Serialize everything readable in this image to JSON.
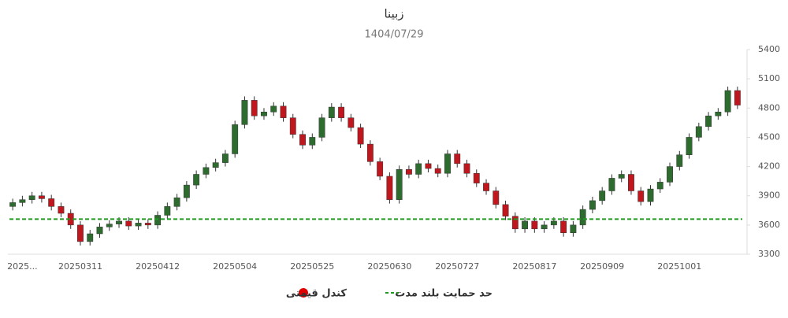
{
  "chart_data": {
    "type": "candlestick",
    "title": "زبینا",
    "subtitle": "1404/07/29",
    "categories": [
      null,
      "2025...",
      null,
      null,
      null,
      null,
      null,
      "20250311",
      null,
      null,
      null,
      null,
      null,
      null,
      null,
      "20250412",
      null,
      null,
      null,
      null,
      null,
      null,
      null,
      "20250504",
      null,
      null,
      null,
      null,
      null,
      null,
      null,
      "20250525",
      null,
      null,
      null,
      null,
      null,
      null,
      null,
      "20250630",
      null,
      null,
      null,
      null,
      null,
      null,
      "20250727",
      null,
      null,
      null,
      null,
      null,
      null,
      null,
      "20250817",
      null,
      null,
      null,
      null,
      null,
      null,
      "20250909",
      null,
      null,
      null,
      null,
      null,
      null,
      null,
      "20251001",
      null,
      null,
      null,
      null,
      null,
      null
    ],
    "series": [
      {
        "name": "کندل قیمتی",
        "color": "#e00000",
        "up_color": "#2e6b2e",
        "down_color": "#c0161d",
        "open": [
          3790,
          3830,
          3860,
          3900,
          3870,
          3790,
          3720,
          3600,
          3430,
          3510,
          3580,
          3610,
          3640,
          3590,
          3620,
          3600,
          3700,
          3790,
          3880,
          4010,
          4120,
          4190,
          4240,
          4330,
          4630,
          4880,
          4720,
          4760,
          4820,
          4700,
          4530,
          4420,
          4500,
          4700,
          4810,
          4700,
          4600,
          4430,
          4250,
          4100,
          3860,
          4170,
          4120,
          4230,
          4180,
          4130,
          4330,
          4230,
          4130,
          4030,
          3950,
          3810,
          3690,
          3560,
          3640,
          3560,
          3600,
          3640,
          3520,
          3600,
          3760,
          3850,
          3950,
          4080,
          4120,
          3950,
          3840,
          3970,
          4040,
          4200,
          4320,
          4500,
          4610,
          4720,
          4760,
          4980
        ],
        "high": [
          3870,
          3900,
          3940,
          3940,
          3910,
          3830,
          3760,
          3640,
          3550,
          3620,
          3650,
          3680,
          3680,
          3660,
          3660,
          3740,
          3830,
          3920,
          4050,
          4160,
          4230,
          4280,
          4370,
          4670,
          4920,
          4920,
          4800,
          4860,
          4860,
          4740,
          4570,
          4540,
          4740,
          4850,
          4850,
          4740,
          4640,
          4470,
          4290,
          4140,
          4210,
          4210,
          4270,
          4270,
          4220,
          4370,
          4370,
          4270,
          4170,
          4070,
          3990,
          3850,
          3730,
          3680,
          3680,
          3640,
          3680,
          3680,
          3640,
          3800,
          3890,
          3990,
          4120,
          4160,
          4160,
          3990,
          4010,
          4080,
          4240,
          4360,
          4540,
          4650,
          4760,
          4800,
          5020,
          5020
        ],
        "low": [
          3750,
          3790,
          3820,
          3830,
          3750,
          3680,
          3560,
          3390,
          3390,
          3470,
          3540,
          3570,
          3550,
          3550,
          3560,
          3560,
          3660,
          3750,
          3840,
          3970,
          4080,
          4150,
          4200,
          4290,
          4590,
          4680,
          4680,
          4720,
          4660,
          4490,
          4380,
          4380,
          4460,
          4660,
          4660,
          4560,
          4390,
          4210,
          4060,
          3820,
          3820,
          4080,
          4080,
          4140,
          4090,
          4090,
          4190,
          4090,
          3990,
          3910,
          3770,
          3650,
          3520,
          3520,
          3520,
          3520,
          3560,
          3480,
          3480,
          3560,
          3720,
          3810,
          3910,
          4040,
          3910,
          3800,
          3800,
          3930,
          4000,
          4160,
          4280,
          4460,
          4570,
          4680,
          4720,
          4790
        ],
        "close": [
          3830,
          3860,
          3900,
          3870,
          3790,
          3720,
          3600,
          3430,
          3510,
          3580,
          3610,
          3640,
          3590,
          3620,
          3600,
          3700,
          3790,
          3880,
          4010,
          4120,
          4190,
          4240,
          4330,
          4630,
          4880,
          4720,
          4760,
          4820,
          4700,
          4530,
          4420,
          4500,
          4700,
          4810,
          4700,
          4600,
          4430,
          4250,
          4100,
          3860,
          4170,
          4120,
          4230,
          4180,
          4130,
          4330,
          4230,
          4130,
          4030,
          3950,
          3810,
          3690,
          3560,
          3640,
          3560,
          3600,
          3640,
          3520,
          3600,
          3760,
          3850,
          3950,
          4080,
          4120,
          3950,
          3840,
          3970,
          4040,
          4200,
          4320,
          4500,
          4610,
          4720,
          4760,
          4980,
          4830
        ]
      }
    ],
    "support": {
      "name": "حد حمایت بلند مدت",
      "value": 3660,
      "color": "#1e9b1e"
    },
    "ylim": [
      3300,
      5400
    ],
    "yticks": [
      3300,
      3600,
      3900,
      4200,
      4500,
      4800,
      5100,
      5400
    ],
    "y_axis_side": "right"
  }
}
